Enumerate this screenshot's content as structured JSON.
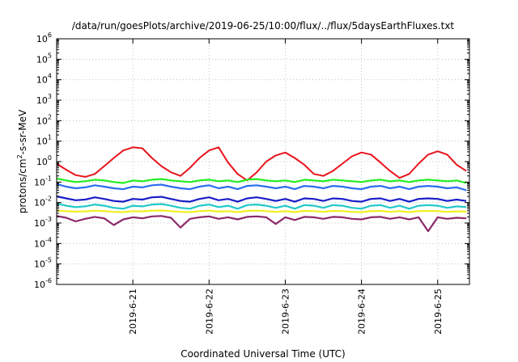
{
  "chart_data": {
    "type": "line",
    "title": "/data/run/goesPlots/archive/2019-06-25/10:00/flux/../flux/5daysEarthFluxes.txt",
    "xlabel": "Coordinated Universal Time (UTC)",
    "ylabel": "protons/cm²-s-sr-MeV",
    "ylabel_parts": {
      "base": "protons/cm",
      "sup": "2",
      "rest": "-s-sr-MeV"
    },
    "yscale": "log",
    "ylim": [
      "1e-6",
      "1e6"
    ],
    "xlim": [
      "2019-06-20 00:00",
      "2019-06-25 10:00"
    ],
    "grid": true,
    "yticks": [
      {
        "base": "10",
        "exp": "-6"
      },
      {
        "base": "10",
        "exp": "-5"
      },
      {
        "base": "10",
        "exp": "-4"
      },
      {
        "base": "10",
        "exp": "-3"
      },
      {
        "base": "10",
        "exp": "-2"
      },
      {
        "base": "10",
        "exp": "-1"
      },
      {
        "base": "10",
        "exp": "0"
      },
      {
        "base": "10",
        "exp": "1"
      },
      {
        "base": "10",
        "exp": "2"
      },
      {
        "base": "10",
        "exp": "3"
      },
      {
        "base": "10",
        "exp": "4"
      },
      {
        "base": "10",
        "exp": "5"
      },
      {
        "base": "10",
        "exp": "6"
      }
    ],
    "xticks": [
      "2019-6-21",
      "2019-6-22",
      "2019-6-23",
      "2019-6-24",
      "2019-6-25"
    ],
    "x": [
      "2019-06-20 00:00",
      "2019-06-20 03:00",
      "2019-06-20 06:00",
      "2019-06-20 09:00",
      "2019-06-20 12:00",
      "2019-06-20 15:00",
      "2019-06-20 18:00",
      "2019-06-20 21:00",
      "2019-06-21 00:00",
      "2019-06-21 03:00",
      "2019-06-21 06:00",
      "2019-06-21 09:00",
      "2019-06-21 12:00",
      "2019-06-21 15:00",
      "2019-06-21 18:00",
      "2019-06-21 21:00",
      "2019-06-22 00:00",
      "2019-06-22 03:00",
      "2019-06-22 06:00",
      "2019-06-22 09:00",
      "2019-06-22 12:00",
      "2019-06-22 15:00",
      "2019-06-22 18:00",
      "2019-06-22 21:00",
      "2019-06-23 00:00",
      "2019-06-23 03:00",
      "2019-06-23 06:00",
      "2019-06-23 09:00",
      "2019-06-23 12:00",
      "2019-06-23 15:00",
      "2019-06-23 18:00",
      "2019-06-23 21:00",
      "2019-06-24 00:00",
      "2019-06-24 03:00",
      "2019-06-24 06:00",
      "2019-06-24 09:00",
      "2019-06-24 12:00",
      "2019-06-24 15:00",
      "2019-06-24 18:00",
      "2019-06-24 21:00",
      "2019-06-25 00:00",
      "2019-06-25 03:00",
      "2019-06-25 06:00",
      "2019-06-25 09:00"
    ],
    "series": [
      {
        "color": "#e8141c",
        "values": [
          0.8,
          0.4,
          0.22,
          0.18,
          0.25,
          0.6,
          1.5,
          3.5,
          5,
          4.5,
          1.5,
          0.6,
          0.3,
          0.2,
          0.5,
          1.5,
          3.5,
          5,
          0.9,
          0.25,
          0.12,
          0.3,
          1.0,
          2.0,
          2.8,
          1.5,
          0.7,
          0.25,
          0.2,
          0.35,
          0.8,
          1.8,
          2.8,
          2.2,
          0.9,
          0.35,
          0.16,
          0.25,
          0.8,
          2.2,
          3.2,
          2.2,
          0.7,
          0.35
        ]
      },
      {
        "color": "#22ee22",
        "values": [
          0.15,
          0.12,
          0.1,
          0.11,
          0.13,
          0.12,
          0.1,
          0.09,
          0.12,
          0.11,
          0.13,
          0.14,
          0.12,
          0.11,
          0.1,
          0.12,
          0.13,
          0.11,
          0.12,
          0.1,
          0.13,
          0.14,
          0.12,
          0.11,
          0.12,
          0.1,
          0.13,
          0.12,
          0.11,
          0.13,
          0.12,
          0.11,
          0.1,
          0.12,
          0.13,
          0.11,
          0.12,
          0.1,
          0.12,
          0.13,
          0.12,
          0.11,
          0.12,
          0.09
        ]
      },
      {
        "color": "#2a6ef0",
        "values": [
          0.08,
          0.06,
          0.05,
          0.055,
          0.07,
          0.06,
          0.05,
          0.045,
          0.06,
          0.055,
          0.07,
          0.075,
          0.06,
          0.05,
          0.045,
          0.06,
          0.07,
          0.05,
          0.06,
          0.045,
          0.065,
          0.07,
          0.06,
          0.05,
          0.06,
          0.045,
          0.065,
          0.06,
          0.05,
          0.065,
          0.06,
          0.05,
          0.045,
          0.06,
          0.065,
          0.05,
          0.06,
          0.045,
          0.06,
          0.065,
          0.06,
          0.05,
          0.055,
          0.04
        ]
      },
      {
        "color": "#1a1ec8",
        "values": [
          0.02,
          0.016,
          0.013,
          0.014,
          0.018,
          0.015,
          0.012,
          0.011,
          0.015,
          0.014,
          0.018,
          0.019,
          0.015,
          0.012,
          0.011,
          0.015,
          0.018,
          0.013,
          0.015,
          0.011,
          0.016,
          0.018,
          0.015,
          0.012,
          0.015,
          0.011,
          0.016,
          0.015,
          0.012,
          0.016,
          0.015,
          0.012,
          0.011,
          0.015,
          0.016,
          0.012,
          0.015,
          0.011,
          0.015,
          0.016,
          0.015,
          0.012,
          0.014,
          0.012
        ]
      },
      {
        "color": "#22c8c8",
        "values": [
          0.009,
          0.007,
          0.006,
          0.0065,
          0.008,
          0.007,
          0.0055,
          0.005,
          0.007,
          0.0065,
          0.008,
          0.0085,
          0.007,
          0.0055,
          0.005,
          0.007,
          0.008,
          0.006,
          0.007,
          0.005,
          0.0075,
          0.008,
          0.007,
          0.0055,
          0.007,
          0.005,
          0.0075,
          0.007,
          0.0055,
          0.0075,
          0.007,
          0.0055,
          0.005,
          0.007,
          0.0075,
          0.0055,
          0.007,
          0.005,
          0.007,
          0.0075,
          0.007,
          0.0055,
          0.0065,
          0.006
        ]
      },
      {
        "color": "#f0f020",
        "values": [
          0.004,
          0.0038,
          0.0036,
          0.0037,
          0.004,
          0.0038,
          0.0035,
          0.0034,
          0.0038,
          0.0037,
          0.004,
          0.0041,
          0.0038,
          0.0035,
          0.0034,
          0.0038,
          0.004,
          0.0036,
          0.0038,
          0.0034,
          0.0039,
          0.004,
          0.0038,
          0.0035,
          0.0038,
          0.0034,
          0.0039,
          0.0038,
          0.0035,
          0.0039,
          0.0038,
          0.0035,
          0.0034,
          0.0038,
          0.0039,
          0.0035,
          0.0038,
          0.0034,
          0.0038,
          0.0039,
          0.0038,
          0.0035,
          0.0037,
          0.0036
        ]
      },
      {
        "color": "#8c2a6a",
        "values": [
          0.0022,
          0.0018,
          0.0012,
          0.0016,
          0.002,
          0.0017,
          0.0008,
          0.0015,
          0.0019,
          0.0017,
          0.0021,
          0.0022,
          0.0018,
          0.0006,
          0.0016,
          0.0019,
          0.0021,
          0.0016,
          0.0019,
          0.0015,
          0.002,
          0.0021,
          0.0019,
          0.0009,
          0.0019,
          0.0014,
          0.002,
          0.0019,
          0.0016,
          0.002,
          0.0019,
          0.0016,
          0.0015,
          0.0019,
          0.002,
          0.0016,
          0.0019,
          0.0015,
          0.0019,
          0.0004,
          0.0019,
          0.0016,
          0.0018,
          0.0017
        ]
      }
    ]
  }
}
